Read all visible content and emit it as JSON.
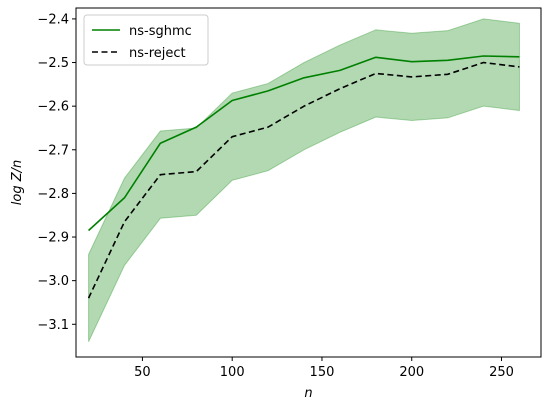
{
  "chart_data": {
    "type": "line",
    "title": "",
    "xlabel": "n",
    "ylabel": "log Z/n",
    "xlim": [
      13,
      272
    ],
    "ylim": [
      -3.175,
      -2.375
    ],
    "xticks": [
      50,
      100,
      150,
      200,
      250
    ],
    "yticks": [
      -3.1,
      -3.0,
      -2.9,
      -2.8,
      -2.7,
      -2.6,
      -2.5,
      -2.4
    ],
    "xtick_labels": [
      "50",
      "100",
      "150",
      "200",
      "250"
    ],
    "ytick_labels": [
      "−3.1",
      "−3.0",
      "−2.9",
      "−2.8",
      "−2.7",
      "−2.6",
      "−2.5",
      "−2.4"
    ],
    "grid": false,
    "legend_position": "top-left",
    "x": [
      20,
      40,
      60,
      80,
      100,
      120,
      140,
      160,
      180,
      200,
      220,
      240,
      260
    ],
    "series": [
      {
        "name": "ns-sghmc",
        "style": "solid",
        "color": "#008000",
        "values": [
          -2.885,
          -2.81,
          -2.685,
          -2.648,
          -2.587,
          -2.565,
          -2.535,
          -2.518,
          -2.488,
          -2.498,
          -2.495,
          -2.485,
          -2.487
        ]
      },
      {
        "name": "ns-reject",
        "style": "dashed",
        "color": "#000000",
        "values": [
          -3.04,
          -2.865,
          -2.757,
          -2.75,
          -2.67,
          -2.648,
          -2.6,
          -2.56,
          -2.525,
          -2.533,
          -2.527,
          -2.5,
          -2.51
        ]
      }
    ],
    "band": {
      "color": "#008000",
      "opacity": 0.3,
      "lower": [
        -3.14,
        -2.965,
        -2.857,
        -2.85,
        -2.77,
        -2.748,
        -2.7,
        -2.66,
        -2.625,
        -2.633,
        -2.627,
        -2.6,
        -2.61
      ],
      "upper": [
        -2.94,
        -2.765,
        -2.657,
        -2.65,
        -2.57,
        -2.548,
        -2.5,
        -2.46,
        -2.425,
        -2.433,
        -2.427,
        -2.4,
        -2.41
      ]
    }
  }
}
